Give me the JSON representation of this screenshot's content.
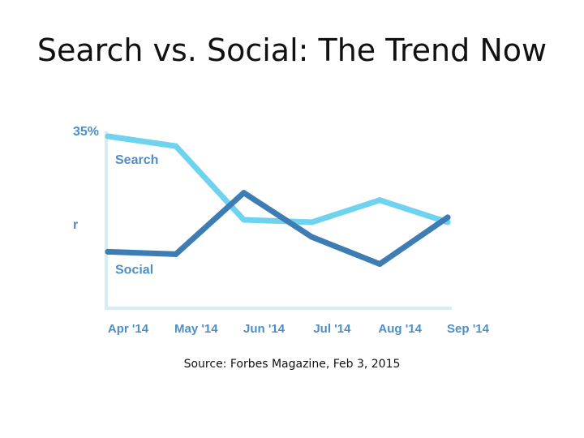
{
  "title": "Search vs. Social: The Trend Now",
  "source": "Source: Forbes Magazine, Feb 3, 2015",
  "colors": {
    "search": "#6fd3f0",
    "social": "#3d7db3",
    "axis": "#d6ecf6",
    "label": "#4f8ec4"
  },
  "chart_data": {
    "type": "line",
    "title": "",
    "categories": [
      "Apr '14",
      "May '14",
      "Jun '14",
      "Jul '14",
      "Aug '14",
      "Sep '14"
    ],
    "y_tick_labels": [
      "35%",
      "r"
    ],
    "ylim": [
      0,
      35
    ],
    "series": [
      {
        "name": "Search",
        "values": [
          35,
          33,
          18,
          17.5,
          22,
          17.5
        ]
      },
      {
        "name": "Social",
        "values": [
          11.5,
          11,
          23.5,
          14.5,
          9,
          18.5
        ]
      }
    ]
  }
}
